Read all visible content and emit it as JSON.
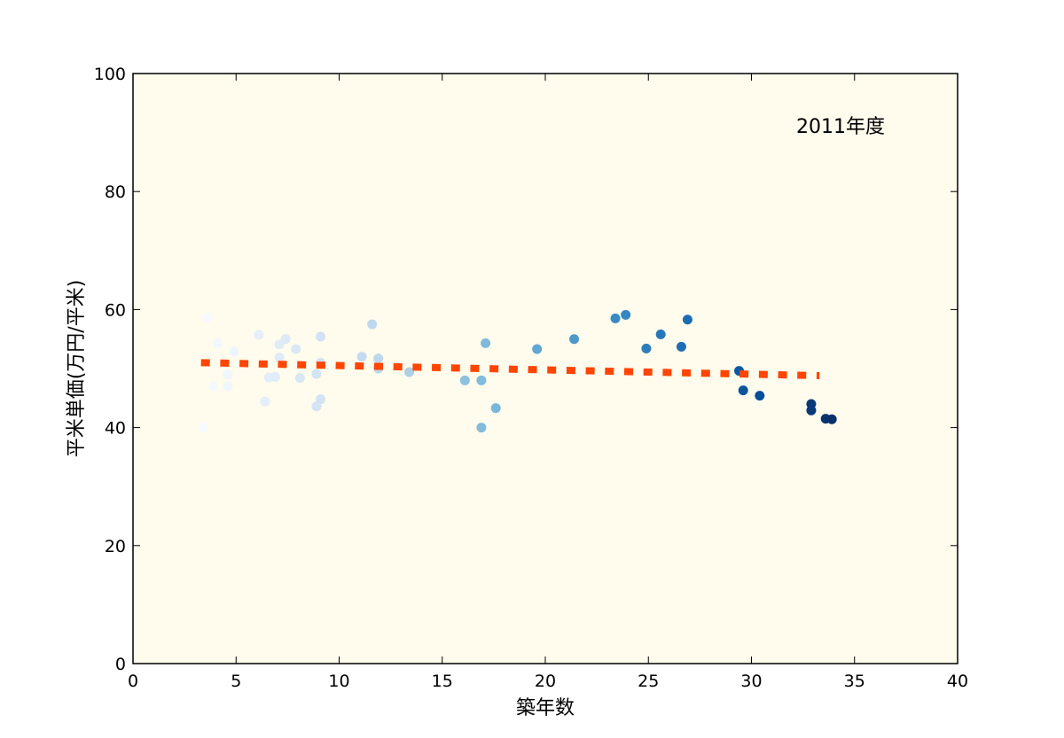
{
  "chart_data": {
    "type": "scatter",
    "annotation": "2011年度",
    "xlabel": "築年数",
    "ylabel": "平米単価(万円/平米)",
    "xlim": [
      0,
      40
    ],
    "ylim": [
      0,
      100
    ],
    "xticks": [
      "0",
      "5",
      "10",
      "15",
      "20",
      "25",
      "30",
      "35",
      "40"
    ],
    "yticks": [
      "0",
      "20",
      "40",
      "60",
      "80",
      "100"
    ],
    "grid": false,
    "background_color": "#fffbed",
    "point_colormap": "Blues (color encodes 築年数)",
    "points": [
      {
        "x": 3.4,
        "y": 40.0
      },
      {
        "x": 3.6,
        "y": 58.7
      },
      {
        "x": 3.9,
        "y": 47.0
      },
      {
        "x": 4.1,
        "y": 54.3
      },
      {
        "x": 4.6,
        "y": 49.0
      },
      {
        "x": 4.6,
        "y": 47.0
      },
      {
        "x": 4.9,
        "y": 52.9
      },
      {
        "x": 6.1,
        "y": 55.7
      },
      {
        "x": 6.4,
        "y": 44.4
      },
      {
        "x": 6.6,
        "y": 48.5
      },
      {
        "x": 6.9,
        "y": 48.6
      },
      {
        "x": 7.1,
        "y": 54.1
      },
      {
        "x": 7.1,
        "y": 51.9
      },
      {
        "x": 7.4,
        "y": 55.0
      },
      {
        "x": 7.9,
        "y": 53.3
      },
      {
        "x": 8.1,
        "y": 48.4
      },
      {
        "x": 8.9,
        "y": 43.6
      },
      {
        "x": 8.9,
        "y": 49.1
      },
      {
        "x": 9.1,
        "y": 55.4
      },
      {
        "x": 9.1,
        "y": 51.0
      },
      {
        "x": 9.1,
        "y": 44.8
      },
      {
        "x": 11.1,
        "y": 52.0
      },
      {
        "x": 11.6,
        "y": 57.5
      },
      {
        "x": 11.9,
        "y": 51.7
      },
      {
        "x": 11.9,
        "y": 50.0
      },
      {
        "x": 13.4,
        "y": 49.4
      },
      {
        "x": 16.1,
        "y": 48.0
      },
      {
        "x": 16.9,
        "y": 48.0
      },
      {
        "x": 16.9,
        "y": 40.0
      },
      {
        "x": 17.1,
        "y": 54.3
      },
      {
        "x": 17.6,
        "y": 43.3
      },
      {
        "x": 19.6,
        "y": 53.3
      },
      {
        "x": 21.4,
        "y": 55.0
      },
      {
        "x": 23.4,
        "y": 58.5
      },
      {
        "x": 23.9,
        "y": 59.1
      },
      {
        "x": 24.9,
        "y": 53.4
      },
      {
        "x": 25.6,
        "y": 55.8
      },
      {
        "x": 26.6,
        "y": 53.7
      },
      {
        "x": 26.9,
        "y": 58.3
      },
      {
        "x": 29.4,
        "y": 49.6
      },
      {
        "x": 29.6,
        "y": 46.3
      },
      {
        "x": 30.4,
        "y": 45.4
      },
      {
        "x": 32.9,
        "y": 44.0
      },
      {
        "x": 32.9,
        "y": 42.9
      },
      {
        "x": 33.6,
        "y": 41.5
      },
      {
        "x": 33.9,
        "y": 41.4
      }
    ],
    "trend_line": {
      "style": "dotted",
      "color": "#ff4500",
      "x": [
        3.3,
        33.3
      ],
      "y": [
        51.0,
        48.8
      ]
    }
  }
}
